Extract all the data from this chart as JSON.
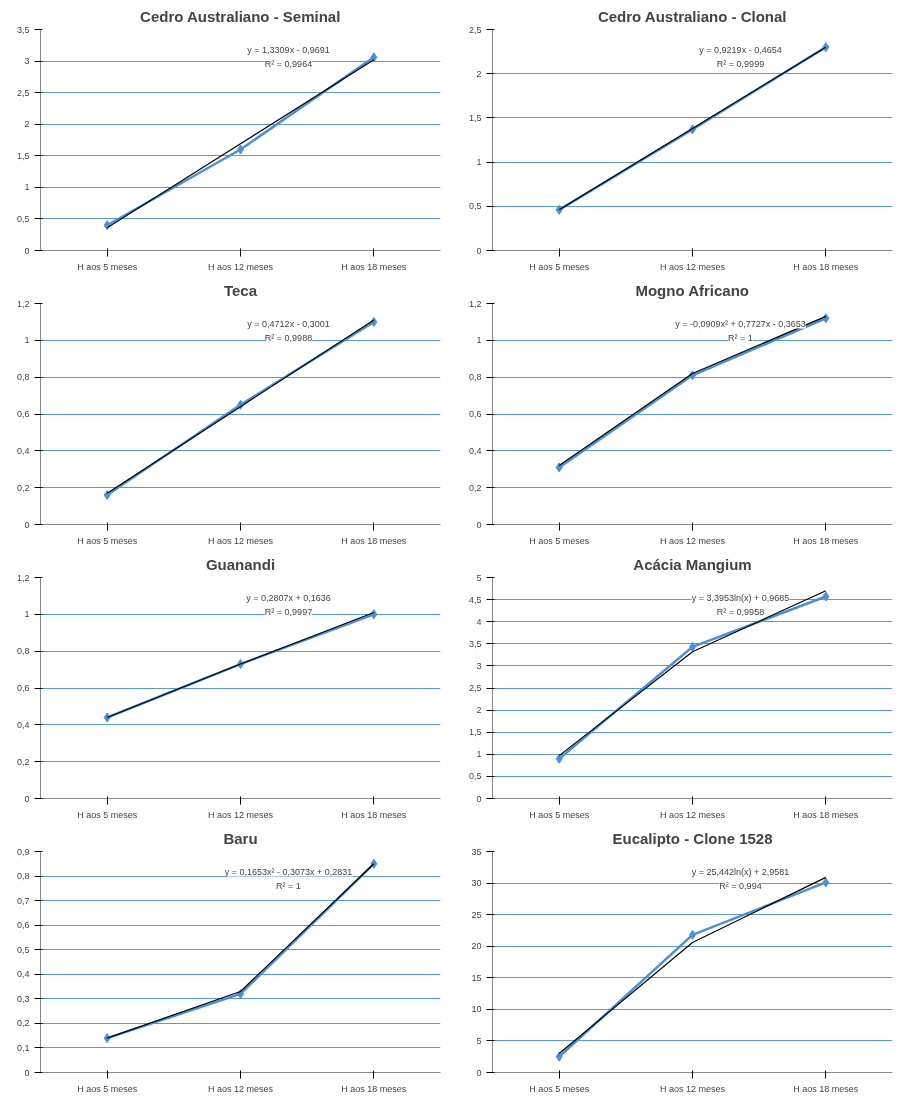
{
  "chart_data": [
    {
      "type": "line",
      "title": "Cedro Australiano - Seminal",
      "marker": "diamond",
      "grid": "y",
      "categories": [
        "H aos 5 meses",
        "H aos 12 meses",
        "H aos 18 meses"
      ],
      "ylim": [
        0,
        3.5
      ],
      "yticks": [
        0,
        {
          "value": 0.5,
          "label": "0,5"
        },
        1,
        {
          "value": 1.5,
          "label": "1,5"
        },
        2,
        {
          "value": 2.5,
          "label": "2,5"
        },
        3,
        {
          "value": 3.5,
          "label": "3,5"
        }
      ],
      "annotations": [
        "y = 1,3309x - 0,9691",
        "R² = 0,9964"
      ],
      "series": [
        {
          "color": "#4a90d9",
          "values": [
            0.4,
            1.6,
            3.06
          ]
        },
        {
          "type": "line",
          "color": "#000000",
          "marker": "none",
          "values": [
            0.36,
            1.69,
            3.02
          ]
        }
      ]
    },
    {
      "type": "line",
      "title": "Cedro Australiano - Clonal",
      "marker": "diamond",
      "grid": "y",
      "categories": [
        "H aos 5 meses",
        "H aos 12 meses",
        "H aos 18 meses"
      ],
      "ylim": [
        0,
        2.5
      ],
      "yticks": [
        0,
        {
          "value": 0.5,
          "label": "0,5"
        },
        1,
        {
          "value": 1.5,
          "label": "1,5"
        },
        2,
        {
          "value": 2.5,
          "label": "2,5"
        }
      ],
      "annotations": [
        "y = 0,9219x - 0,4654",
        "R² = 0,9999"
      ],
      "series": [
        {
          "color": "#4a90d9",
          "values": [
            0.46,
            1.37,
            2.3
          ]
        },
        {
          "type": "line",
          "color": "#000000",
          "marker": "none",
          "values": [
            0.46,
            1.38,
            2.3
          ]
        }
      ]
    },
    {
      "type": "line",
      "title": "Teca",
      "marker": "diamond",
      "grid": "y",
      "categories": [
        "H aos 5 meses",
        "H aos 12 meses",
        "H aos 18 meses"
      ],
      "ylim": [
        0,
        1.2
      ],
      "yticks": [
        0,
        {
          "value": 0.2,
          "label": "0,2"
        },
        {
          "value": 0.4,
          "label": "0,4"
        },
        {
          "value": 0.6,
          "label": "0,6"
        },
        {
          "value": 0.8,
          "label": "0,8"
        },
        1,
        {
          "value": 1.2,
          "label": "1,2"
        }
      ],
      "annotations": [
        "y = 0,4712x - 0,3001",
        "R² = 0,9988"
      ],
      "series": [
        {
          "color": "#4a90d9",
          "values": [
            0.16,
            0.65,
            1.1
          ]
        },
        {
          "type": "line",
          "color": "#000000",
          "marker": "none",
          "values": [
            0.17,
            0.64,
            1.11
          ]
        }
      ]
    },
    {
      "type": "line",
      "title": "Mogno Africano",
      "marker": "diamond",
      "grid": "y",
      "categories": [
        "H aos 5 meses",
        "H aos 12 meses",
        "H aos 18 meses"
      ],
      "ylim": [
        0,
        1.2
      ],
      "yticks": [
        0,
        {
          "value": 0.2,
          "label": "0,2"
        },
        {
          "value": 0.4,
          "label": "0,4"
        },
        {
          "value": 0.6,
          "label": "0,6"
        },
        {
          "value": 0.8,
          "label": "0,8"
        },
        1,
        {
          "value": 1.2,
          "label": "1,2"
        }
      ],
      "annotations": [
        "y = -0,0909x² + 0,7727x - 0,3653",
        "R² = 1"
      ],
      "series": [
        {
          "color": "#4a90d9",
          "values": [
            0.31,
            0.81,
            1.12
          ]
        },
        {
          "type": "line",
          "color": "#000000",
          "marker": "none",
          "values": [
            0.32,
            0.82,
            1.13
          ]
        }
      ]
    },
    {
      "type": "line",
      "title": "Guanandi",
      "marker": "diamond",
      "grid": "y",
      "categories": [
        "H aos 5 meses",
        "H aos 12 meses",
        "H aos 18 meses"
      ],
      "ylim": [
        0,
        1.2
      ],
      "yticks": [
        0,
        {
          "value": 0.2,
          "label": "0,2"
        },
        {
          "value": 0.4,
          "label": "0,4"
        },
        {
          "value": 0.6,
          "label": "0,6"
        },
        {
          "value": 0.8,
          "label": "0,8"
        },
        1,
        {
          "value": 1.2,
          "label": "1,2"
        }
      ],
      "annotations": [
        "y = 0,2807x + 0,1636",
        "R² = 0,9997"
      ],
      "series": [
        {
          "color": "#4a90d9",
          "values": [
            0.44,
            0.73,
            1.0
          ]
        },
        {
          "type": "line",
          "color": "#000000",
          "marker": "none",
          "values": [
            0.44,
            0.73,
            1.01
          ]
        }
      ]
    },
    {
      "type": "line",
      "title": "Acácia Mangium",
      "marker": "diamond",
      "grid": "y",
      "categories": [
        "H aos 5 meses",
        "H aos 12 meses",
        "H aos 18 meses"
      ],
      "ylim": [
        0,
        5
      ],
      "yticks": [
        0,
        {
          "value": 0.5,
          "label": "0,5"
        },
        1,
        {
          "value": 1.5,
          "label": "1,5"
        },
        2,
        {
          "value": 2.5,
          "label": "2,5"
        },
        3,
        {
          "value": 3.5,
          "label": "3,5"
        },
        4,
        {
          "value": 4.5,
          "label": "4,5"
        },
        5
      ],
      "annotations": [
        "y = 3,3953ln(x) + 0,9685",
        "R² = 0,9958"
      ],
      "series": [
        {
          "color": "#4a90d9",
          "values": [
            0.9,
            3.43,
            4.57
          ]
        },
        {
          "type": "line",
          "color": "#000000",
          "marker": "none",
          "values": [
            0.97,
            3.32,
            4.7
          ]
        }
      ]
    },
    {
      "type": "line",
      "title": "Baru",
      "marker": "diamond",
      "grid": "y",
      "categories": [
        "H aos 5 meses",
        "H aos 12 meses",
        "H aos 18 meses"
      ],
      "ylim": [
        0,
        0.9
      ],
      "yticks": [
        0,
        {
          "value": 0.1,
          "label": "0,1"
        },
        {
          "value": 0.2,
          "label": "0,2"
        },
        {
          "value": 0.3,
          "label": "0,3"
        },
        {
          "value": 0.4,
          "label": "0,4"
        },
        {
          "value": 0.5,
          "label": "0,5"
        },
        {
          "value": 0.6,
          "label": "0,6"
        },
        {
          "value": 0.7,
          "label": "0,7"
        },
        {
          "value": 0.8,
          "label": "0,8"
        },
        {
          "value": 0.9,
          "label": "0,9"
        }
      ],
      "annotations": [
        "y = 0,1653x² - 0,3073x + 0,2831",
        "R² = 1"
      ],
      "series": [
        {
          "color": "#4a90d9",
          "values": [
            0.14,
            0.32,
            0.85
          ]
        },
        {
          "type": "line",
          "color": "#000000",
          "marker": "none",
          "values": [
            0.14,
            0.33,
            0.85
          ]
        }
      ]
    },
    {
      "type": "line",
      "title": "Eucalipto - Clone 1528",
      "marker": "diamond",
      "grid": "y",
      "categories": [
        "H aos 5 meses",
        "H aos 12 meses",
        "H aos 18 meses"
      ],
      "ylim": [
        0,
        35
      ],
      "yticks": [
        0,
        5,
        10,
        15,
        20,
        25,
        30,
        35
      ],
      "annotations": [
        "y = 25,442ln(x) + 2,9581",
        "R² = 0,994"
      ],
      "series": [
        {
          "color": "#4a90d9",
          "values": [
            2.5,
            21.8,
            30.1
          ]
        },
        {
          "type": "line",
          "color": "#000000",
          "marker": "none",
          "values": [
            3.0,
            20.6,
            30.9
          ]
        }
      ]
    }
  ]
}
